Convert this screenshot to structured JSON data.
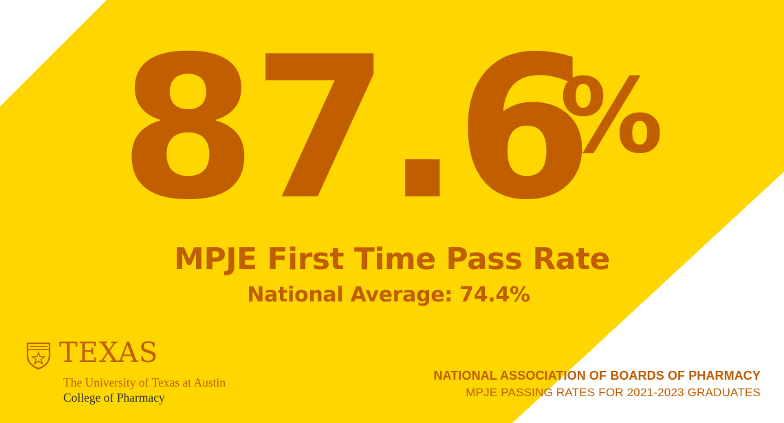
{
  "colors": {
    "brand_orange": "#c05e00",
    "background_yellow": "#ffd600",
    "corner_white": "#ffffff",
    "college_text": "#333333"
  },
  "stat": {
    "number": "87.6",
    "percent_sign": "%"
  },
  "headline": "MPJE First Time Pass Rate",
  "subhead": "National Average: 74.4%",
  "logo": {
    "icon": "shield-icon",
    "wordmark": "TEXAS",
    "university": "The University of Texas at Austin",
    "college": "College of Pharmacy"
  },
  "source": {
    "organization": "NATIONAL ASSOCIATION OF BOARDS OF PHARMACY",
    "note": "MPJE PASSING RATES FOR 2021-2023 GRADUATES"
  }
}
